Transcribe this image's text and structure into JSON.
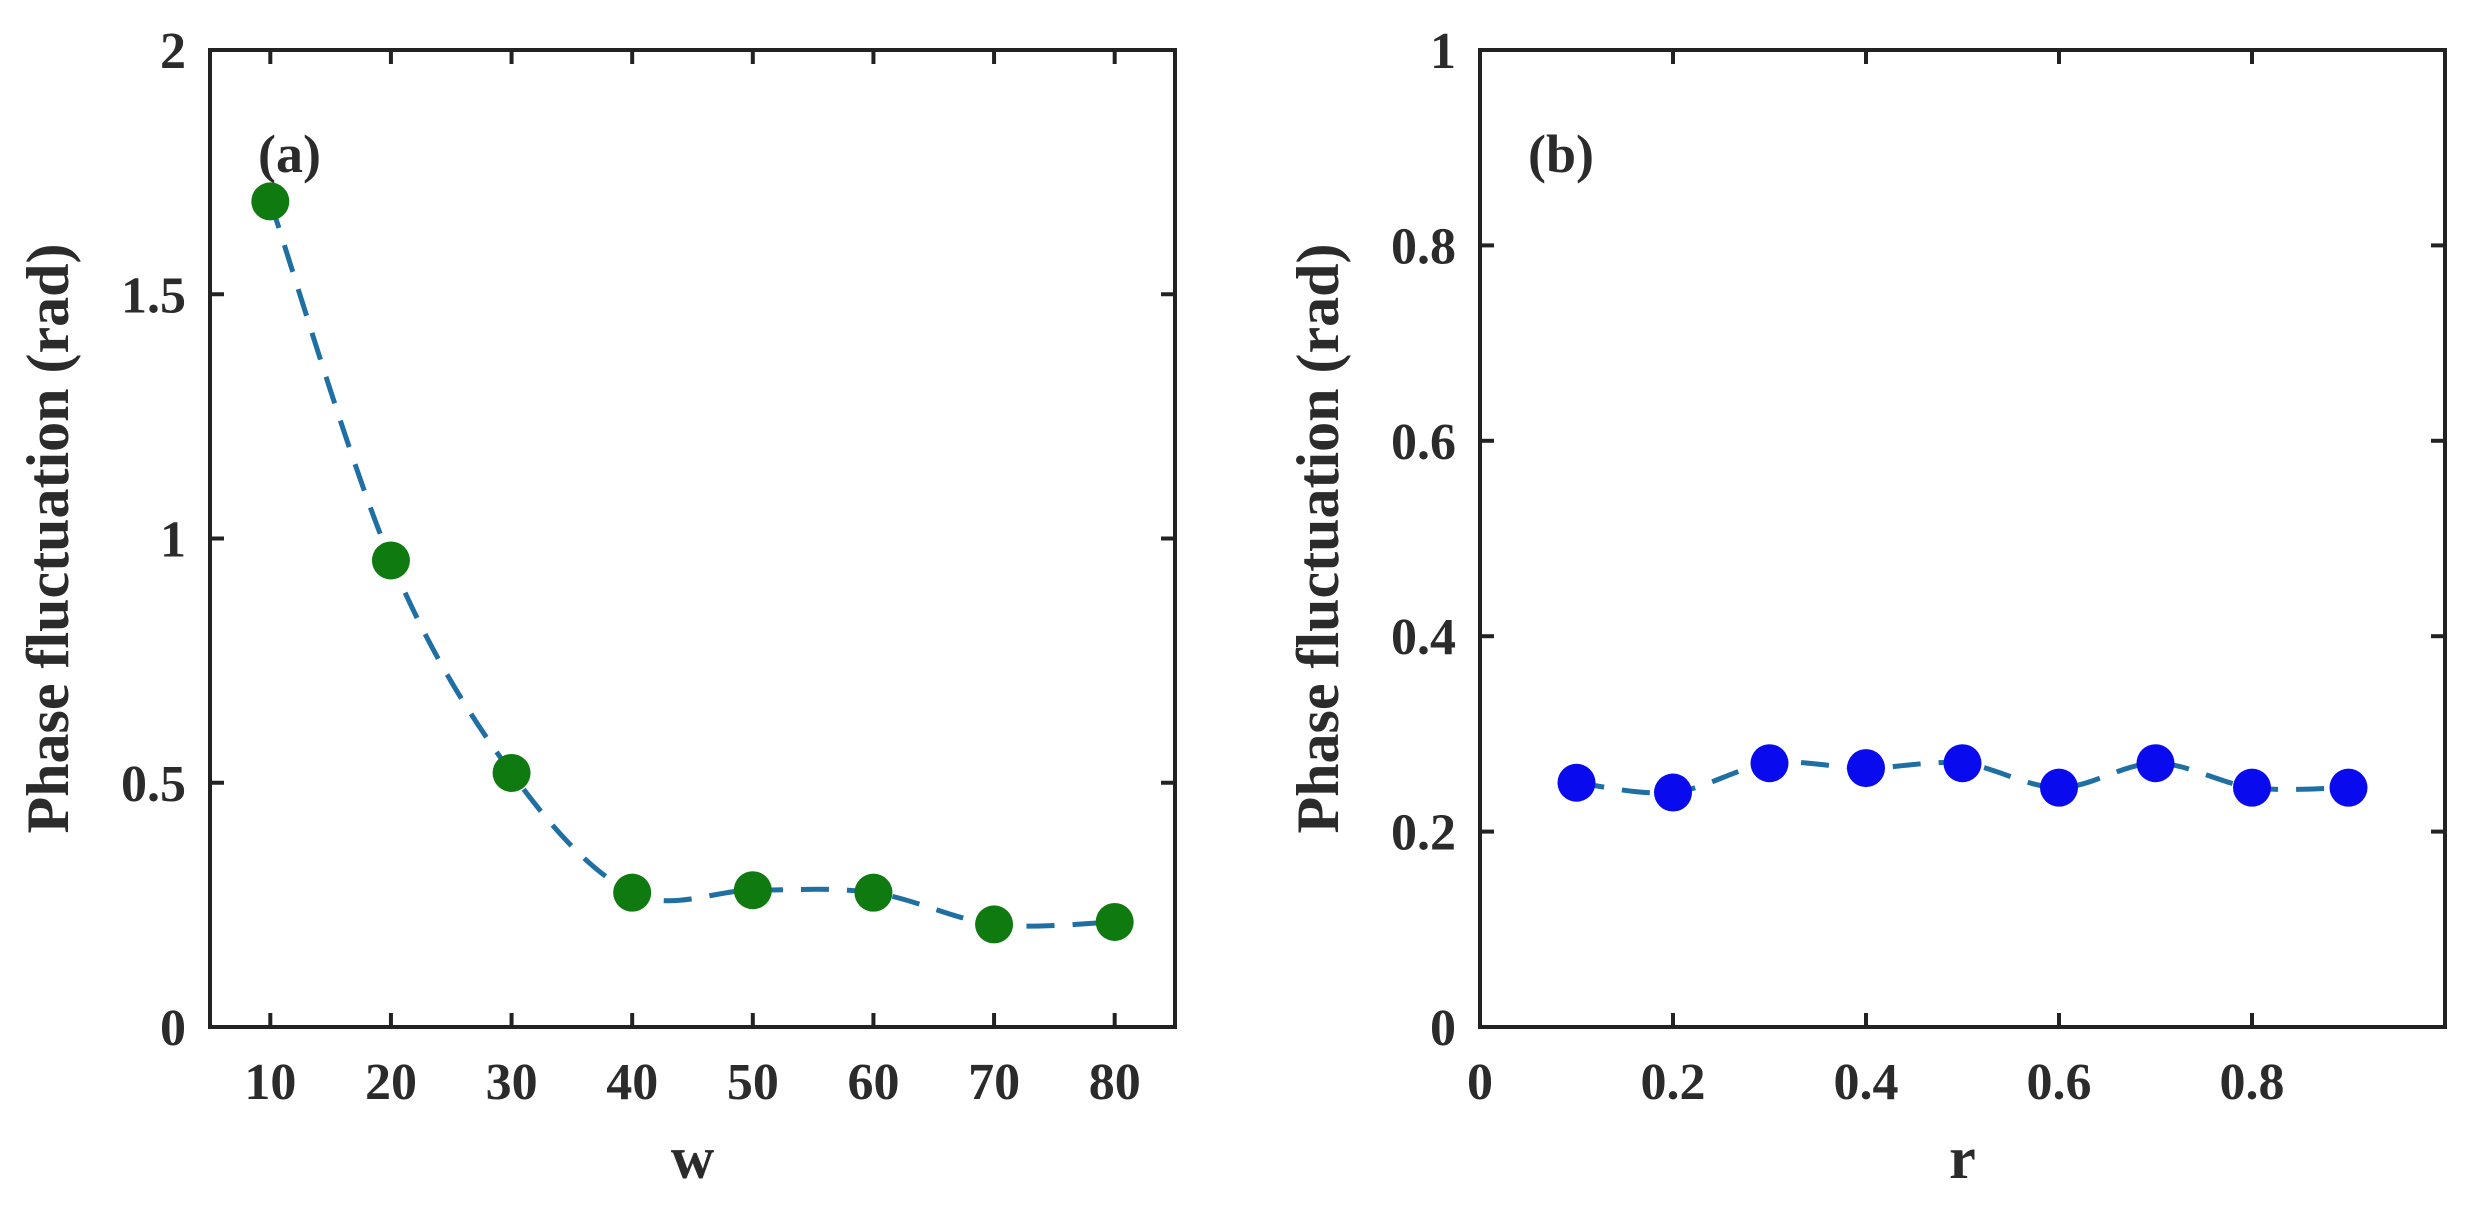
{
  "chart_data": [
    {
      "type": "scatter",
      "panel_label": "(a)",
      "xlabel": "w",
      "ylabel": "Phase fluctuation (rad)",
      "xlim": [
        5,
        85
      ],
      "ylim": [
        0,
        2
      ],
      "xticks": [
        10,
        20,
        30,
        40,
        50,
        60,
        70,
        80
      ],
      "yticks": [
        0,
        0.5,
        1,
        1.5,
        2
      ],
      "xtick_labels": [
        "10",
        "20",
        "30",
        "40",
        "50",
        "60",
        "70",
        "80"
      ],
      "ytick_labels": [
        "0",
        "0.5",
        "1",
        "1.5",
        "2"
      ],
      "grid": false,
      "marker_color": "#0f7a0f",
      "line_color": "#1f6fa3",
      "line_style": "dashed-smooth",
      "series": [
        {
          "x": [
            10,
            20,
            30,
            40,
            50,
            60,
            70,
            80
          ],
          "y": [
            1.69,
            0.955,
            0.52,
            0.275,
            0.28,
            0.275,
            0.21,
            0.215
          ]
        }
      ]
    },
    {
      "type": "scatter",
      "panel_label": "(b)",
      "xlabel": "r",
      "ylabel": "Phase fluctuation (rad)",
      "xlim": [
        0,
        1
      ],
      "ylim": [
        0,
        1
      ],
      "xticks": [
        0,
        0.2,
        0.4,
        0.6,
        0.8
      ],
      "yticks": [
        0,
        0.2,
        0.4,
        0.6,
        0.8,
        1
      ],
      "xtick_labels": [
        "0",
        "0.2",
        "0.4",
        "0.6",
        "0.8"
      ],
      "ytick_labels": [
        "0",
        "0.2",
        "0.4",
        "0.6",
        "0.8",
        "1"
      ],
      "grid": false,
      "marker_color": "#0a0aee",
      "line_color": "#1f6fa3",
      "line_style": "dashed-smooth",
      "series": [
        {
          "x": [
            0.1,
            0.2,
            0.3,
            0.4,
            0.5,
            0.6,
            0.7,
            0.8,
            0.9
          ],
          "y": [
            0.25,
            0.24,
            0.27,
            0.265,
            0.27,
            0.245,
            0.27,
            0.245,
            0.245
          ]
        }
      ]
    }
  ]
}
